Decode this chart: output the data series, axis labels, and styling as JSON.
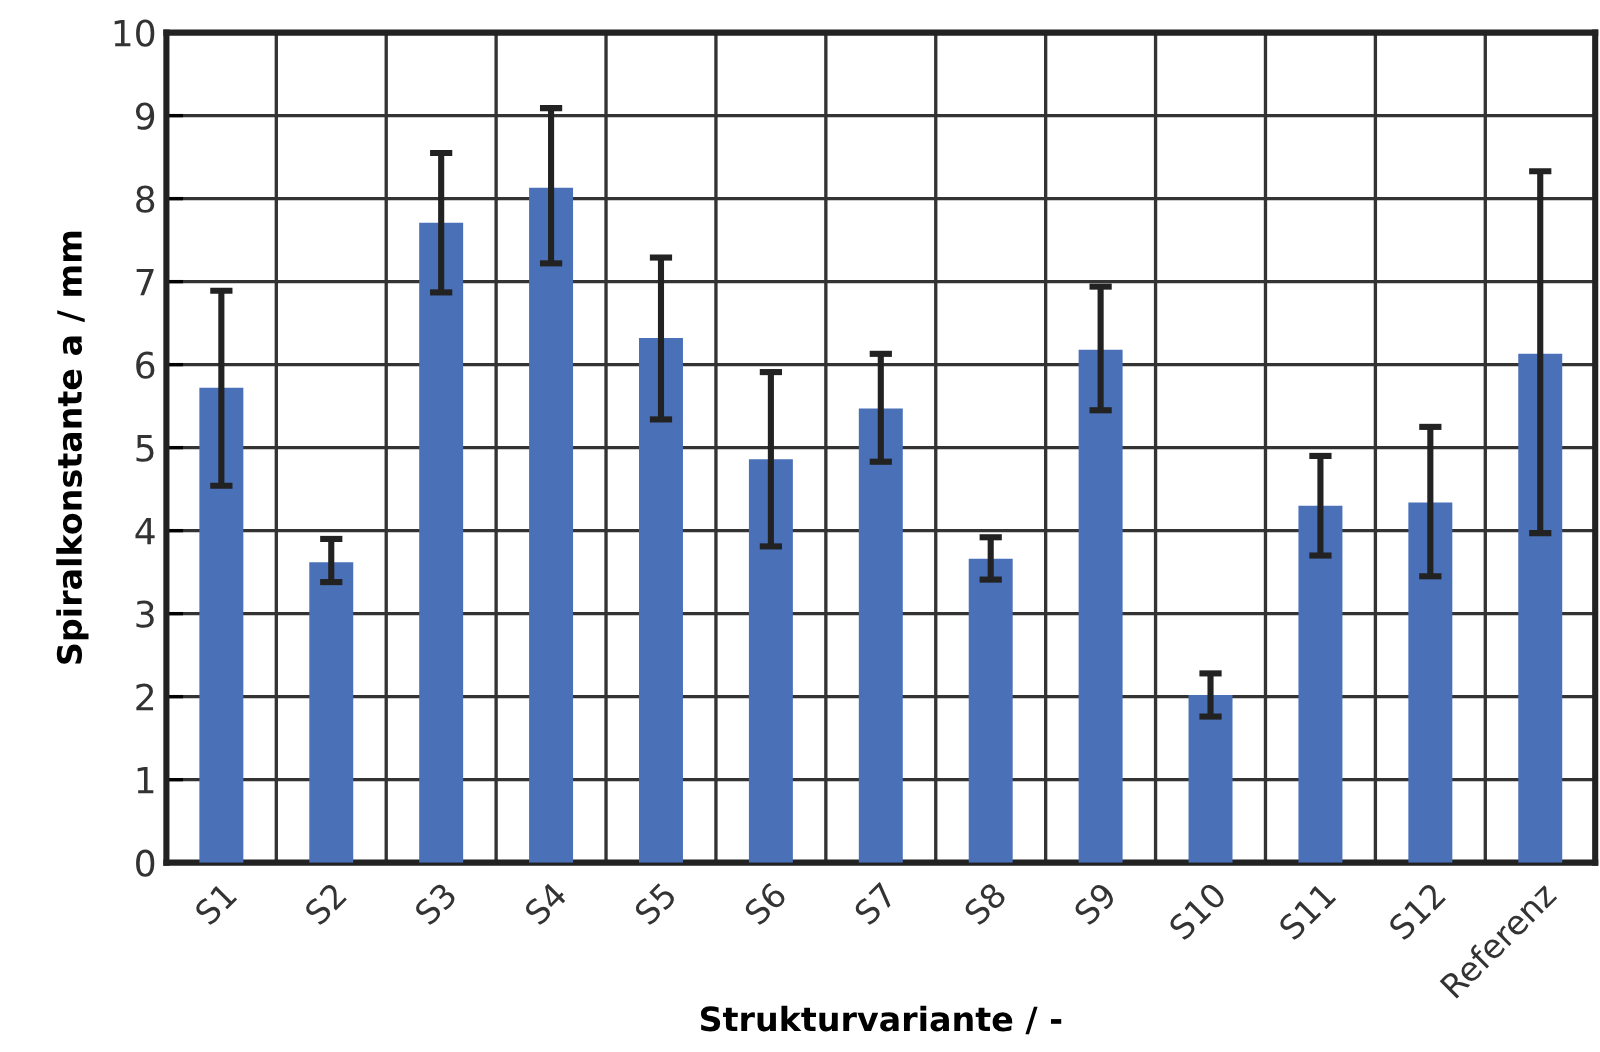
{
  "chart_data": {
    "type": "bar",
    "xlabel": "Strukturvariante / -",
    "ylabel": "Spiralkonstante a / mm",
    "categories": [
      "S1",
      "S2",
      "S3",
      "S4",
      "S5",
      "S6",
      "S7",
      "S8",
      "S9",
      "S10",
      "S11",
      "S12",
      "Referenz"
    ],
    "values": [
      5.72,
      3.62,
      7.71,
      8.13,
      6.32,
      4.86,
      5.47,
      3.66,
      6.18,
      2.02,
      4.3,
      4.34,
      6.13
    ],
    "errors": [
      [
        4.54,
        6.89
      ],
      [
        3.38,
        3.9
      ],
      [
        6.87,
        8.55
      ],
      [
        7.22,
        9.09
      ],
      [
        5.34,
        7.29
      ],
      [
        3.81,
        5.91
      ],
      [
        4.83,
        6.13
      ],
      [
        3.41,
        3.92
      ],
      [
        5.45,
        6.94
      ],
      [
        1.76,
        2.28
      ],
      [
        3.7,
        4.9
      ],
      [
        3.45,
        5.25
      ],
      [
        3.97,
        8.33
      ]
    ],
    "color": "#4a70b8",
    "ylim": [
      0,
      10
    ],
    "yticks": [
      0,
      1,
      2,
      3,
      4,
      5,
      6,
      7,
      8,
      9,
      10
    ],
    "grid": true,
    "legend": false
  }
}
